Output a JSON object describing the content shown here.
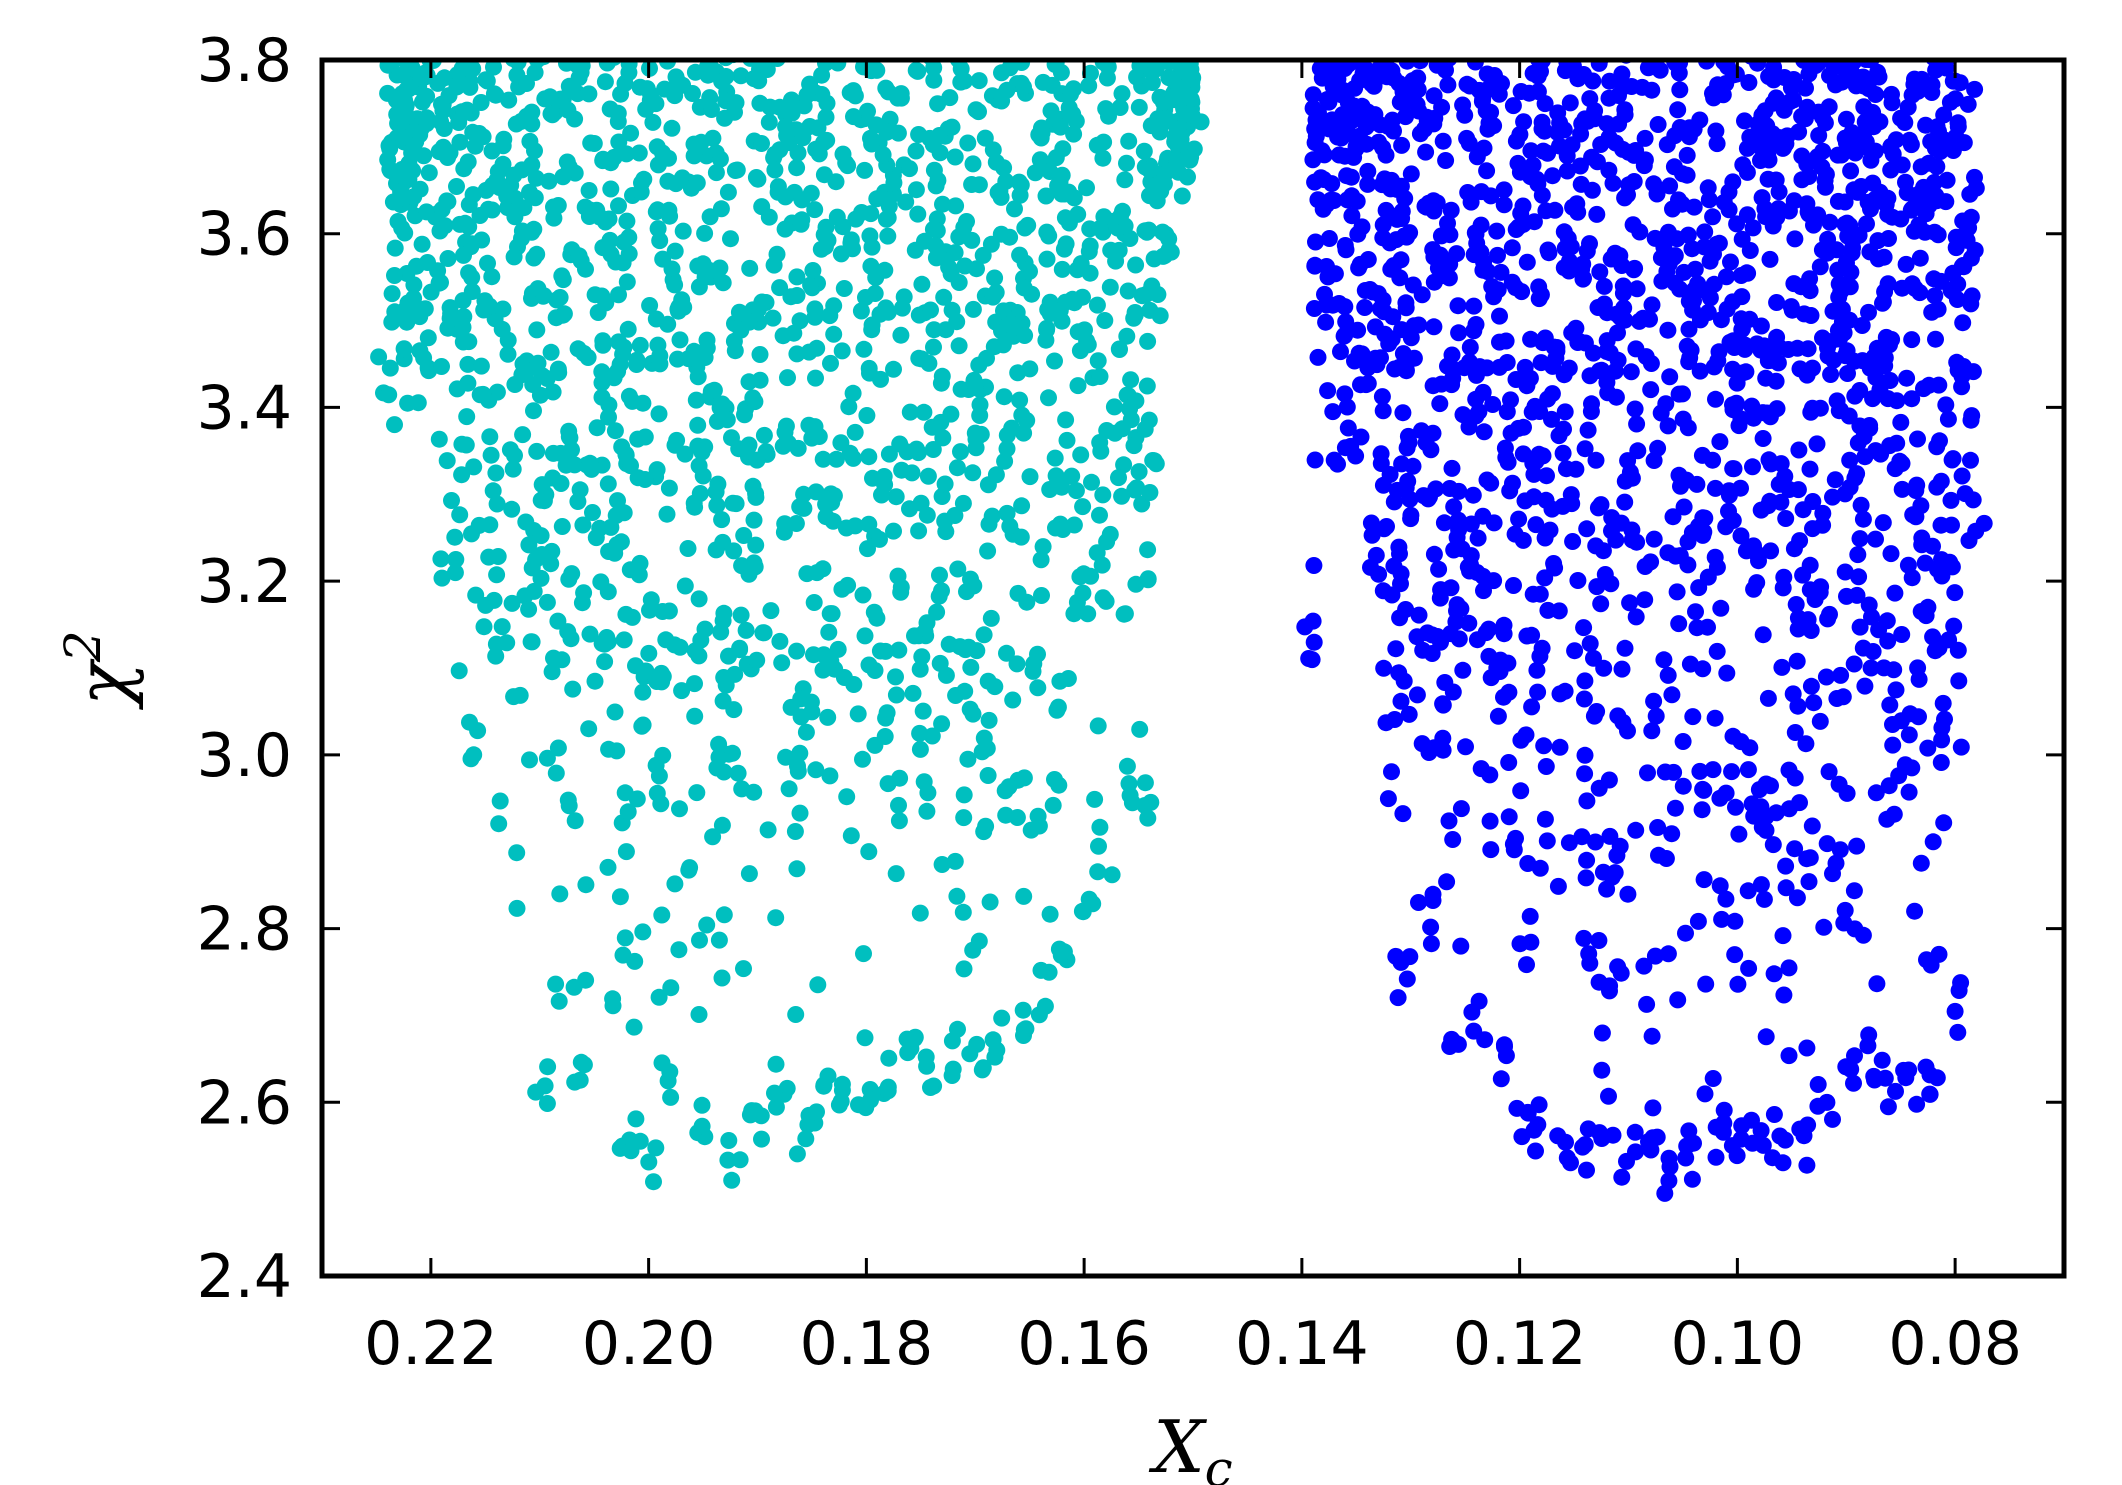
{
  "chart_data": {
    "type": "scatter",
    "title": "",
    "xlabel": {
      "main": "X",
      "sub": "c"
    },
    "ylabel": {
      "main": "χ",
      "sup": "2"
    },
    "xlim": [
      0.23,
      0.07
    ],
    "x_inverted": true,
    "ylim": [
      2.4,
      3.8
    ],
    "grid": false,
    "legend": "none",
    "xticks": [
      {
        "value": 0.22,
        "label": "0.22"
      },
      {
        "value": 0.2,
        "label": "0.20"
      },
      {
        "value": 0.18,
        "label": "0.18"
      },
      {
        "value": 0.16,
        "label": "0.16"
      },
      {
        "value": 0.14,
        "label": "0.14"
      },
      {
        "value": 0.12,
        "label": "0.12"
      },
      {
        "value": 0.1,
        "label": "0.10"
      },
      {
        "value": 0.08,
        "label": "0.08"
      }
    ],
    "yticks": [
      {
        "value": 2.4,
        "label": "2.4"
      },
      {
        "value": 2.6,
        "label": "2.6"
      },
      {
        "value": 2.8,
        "label": "2.8"
      },
      {
        "value": 3.0,
        "label": "3.0"
      },
      {
        "value": 3.2,
        "label": "3.2"
      },
      {
        "value": 3.4,
        "label": "3.4"
      },
      {
        "value": 3.6,
        "label": "3.6"
      },
      {
        "value": 3.8,
        "label": "3.8"
      }
    ],
    "series": [
      {
        "color": "#00bfbf",
        "envelope": {
          "x": [
            0.224,
            0.216,
            0.21,
            0.206,
            0.202,
            0.2,
            0.198,
            0.195,
            0.192,
            0.19,
            0.188,
            0.186,
            0.184,
            0.182,
            0.18,
            0.178,
            0.176,
            0.174,
            0.172,
            0.17,
            0.168,
            0.166,
            0.164,
            0.162,
            0.16,
            0.158,
            0.156,
            0.154,
            0.152,
            0.15
          ],
          "y_min": [
            3.4,
            2.99,
            2.59,
            2.59,
            2.53,
            2.5,
            2.6,
            2.54,
            2.5,
            2.55,
            2.58,
            2.53,
            2.57,
            2.57,
            2.58,
            2.61,
            2.62,
            2.61,
            2.63,
            2.62,
            2.64,
            2.65,
            2.7,
            2.74,
            2.8,
            2.86,
            2.94,
            2.92,
            3.55,
            3.68
          ]
        }
      },
      {
        "color": "#0000ff",
        "envelope": {
          "x": [
            0.139,
            0.135,
            0.131,
            0.128,
            0.126,
            0.124,
            0.122,
            0.12,
            0.118,
            0.116,
            0.114,
            0.112,
            0.11,
            0.108,
            0.106,
            0.104,
            0.102,
            0.1,
            0.098,
            0.096,
            0.094,
            0.092,
            0.09,
            0.088,
            0.086,
            0.084,
            0.082,
            0.08,
            0.078
          ],
          "y_min": [
            3.09,
            3.34,
            2.71,
            2.78,
            2.64,
            2.66,
            2.61,
            2.55,
            2.54,
            2.52,
            2.51,
            2.55,
            2.51,
            2.5,
            2.49,
            2.5,
            2.52,
            2.52,
            2.53,
            2.51,
            2.52,
            2.58,
            2.6,
            2.62,
            2.59,
            2.59,
            2.59,
            2.68,
            3.24
          ]
        }
      }
    ]
  }
}
